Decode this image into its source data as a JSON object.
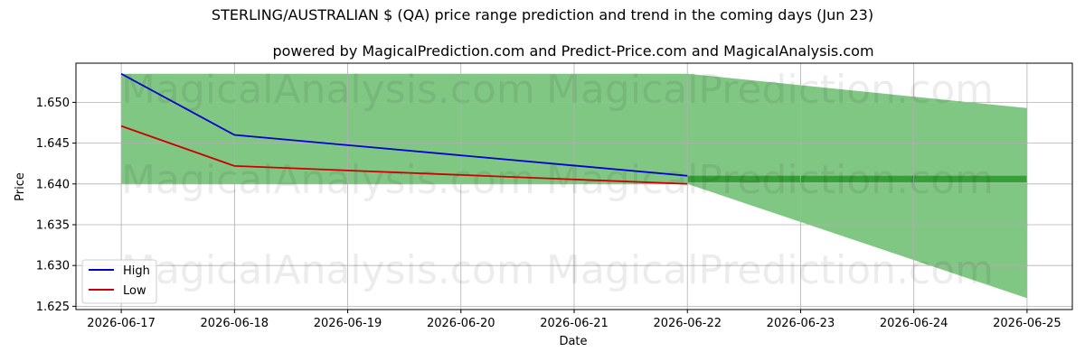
{
  "chart_data": {
    "type": "line",
    "title": "STERLING/AUSTRALIAN $ (QA) price range prediction and trend in the coming days (Jun 23)",
    "subtitle": "powered by MagicalPrediction.com and Predict-Price.com and MagicalAnalysis.com",
    "xlabel": "Date",
    "ylabel": "Price",
    "x": [
      "2026-06-17",
      "2026-06-18",
      "2026-06-19",
      "2026-06-20",
      "2026-06-21",
      "2026-06-22",
      "2026-06-23",
      "2026-06-24",
      "2026-06-25"
    ],
    "yticks": [
      "1.625",
      "1.630",
      "1.635",
      "1.640",
      "1.645",
      "1.650"
    ],
    "ylim": [
      1.6246,
      1.6548
    ],
    "xlim": [
      -0.4,
      8.4
    ],
    "grid": true,
    "legend_position": "bottom-left",
    "series": [
      {
        "name": "High",
        "color": "#0000cc",
        "x": [
          0,
          1,
          5
        ],
        "values": [
          1.6535,
          1.646,
          1.641
        ]
      },
      {
        "name": "Low",
        "color": "#cc0000",
        "x": [
          0,
          1,
          5
        ],
        "values": [
          1.6471,
          1.6422,
          1.64
        ]
      }
    ],
    "bands": [
      {
        "x": [
          0,
          5
        ],
        "upper": [
          1.6535,
          1.6535
        ],
        "lower": [
          1.64,
          1.64
        ],
        "color": "#4caf50"
      },
      {
        "x": [
          5,
          8
        ],
        "upper": [
          1.6535,
          1.6493
        ],
        "lower": [
          1.64,
          1.626
        ],
        "color": "#4caf50"
      }
    ],
    "trend_bar": {
      "x": [
        5,
        8
      ],
      "upper": 1.641,
      "lower": 1.6402,
      "color": "#2e9a2e"
    }
  },
  "watermarks": [
    "MagicalAnalysis.com",
    "MagicalPrediction.com",
    "MagicalAnalysis.com",
    "MagicalPrediction.com",
    "MagicalAnalysis.com",
    "MagicalPrediction.com"
  ]
}
